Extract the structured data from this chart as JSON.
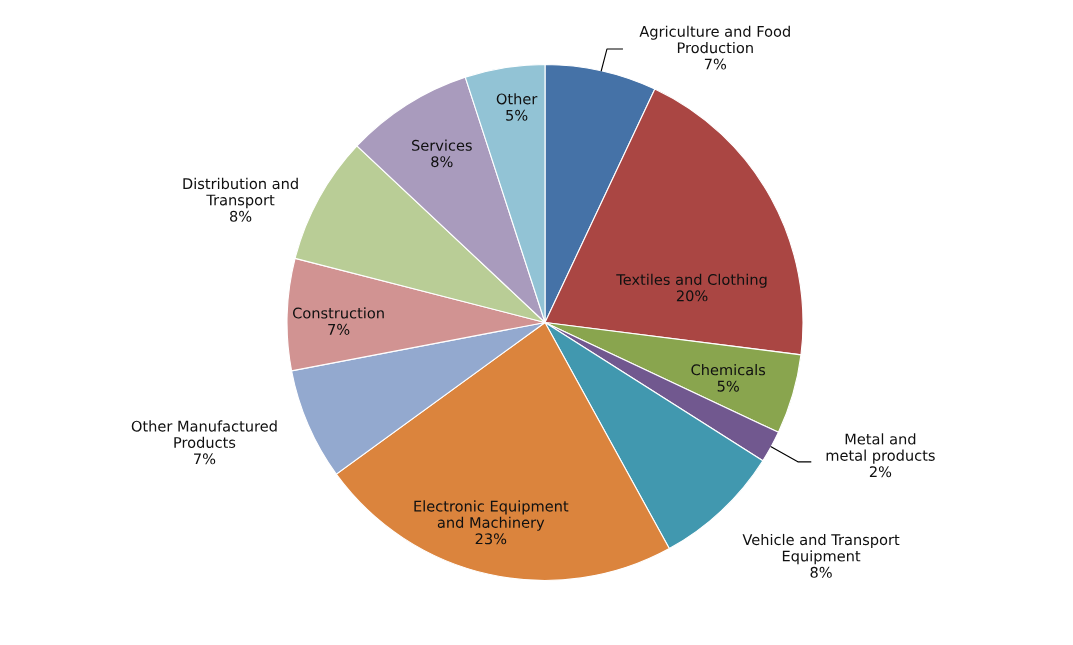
{
  "chart_data": {
    "type": "pie",
    "categories": [
      "Agriculture and Food\nProduction",
      "Textiles and Clothing",
      "Chemicals",
      "Metal and\nmetal products",
      "Vehicle and Transport\nEquipment",
      "Electronic Equipment\nand Machinery",
      "Other Manufactured\nProducts",
      "Construction",
      "Distribution and\nTransport",
      "Services",
      "Other"
    ],
    "values": [
      7,
      20,
      5,
      2,
      8,
      23,
      7,
      7,
      8,
      8,
      5
    ],
    "value_labels": [
      "7%",
      "20%",
      "5%",
      "2%",
      "8%",
      "23%",
      "7%",
      "7%",
      "8%",
      "8%",
      "5%"
    ],
    "colors": [
      "#4572a7",
      "#aa4643",
      "#89a54e",
      "#71588f",
      "#4198af",
      "#db843d",
      "#93a9cf",
      "#d19392",
      "#b9cd96",
      "#a99bbd",
      "#92c3d5"
    ]
  }
}
